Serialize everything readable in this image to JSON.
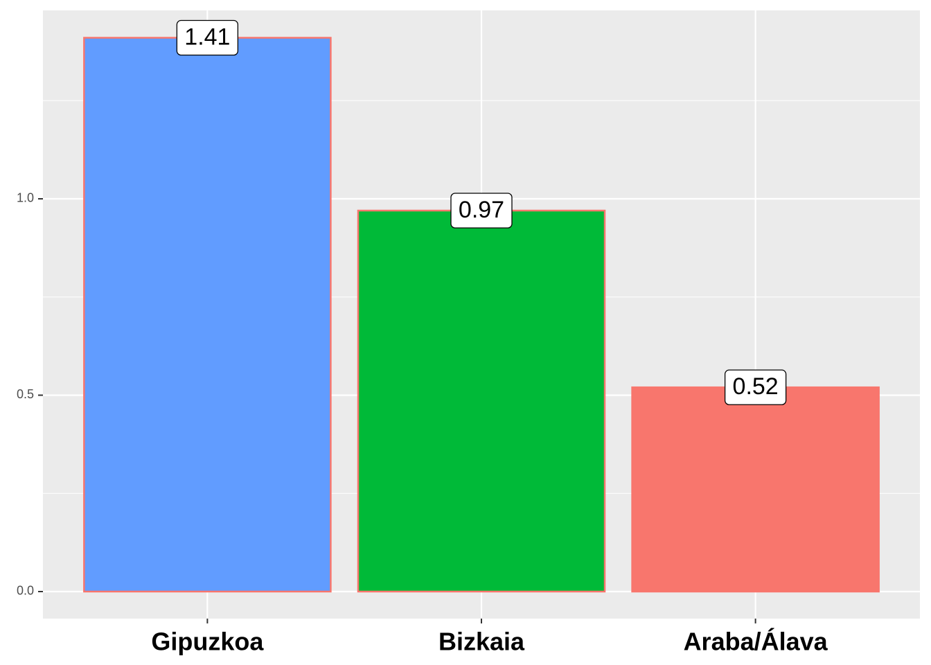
{
  "chart_data": {
    "type": "bar",
    "categories": [
      "Gipuzkoa",
      "Bizkaia",
      "Araba/Álava"
    ],
    "values": [
      1.41,
      0.97,
      0.52
    ],
    "colors": [
      "#619CFF",
      "#00BA38",
      "#F8766D"
    ],
    "outline_color": "#F8766D",
    "ylim": [
      -0.0688,
      1.4797
    ],
    "yticks": [
      {
        "value": 0,
        "label": "0.0"
      },
      {
        "value": 0.5,
        "label": "0.5"
      },
      {
        "value": 1,
        "label": "1.0"
      }
    ],
    "minor_yticks": [
      0.25,
      0.75,
      1.25
    ],
    "grid": true
  }
}
